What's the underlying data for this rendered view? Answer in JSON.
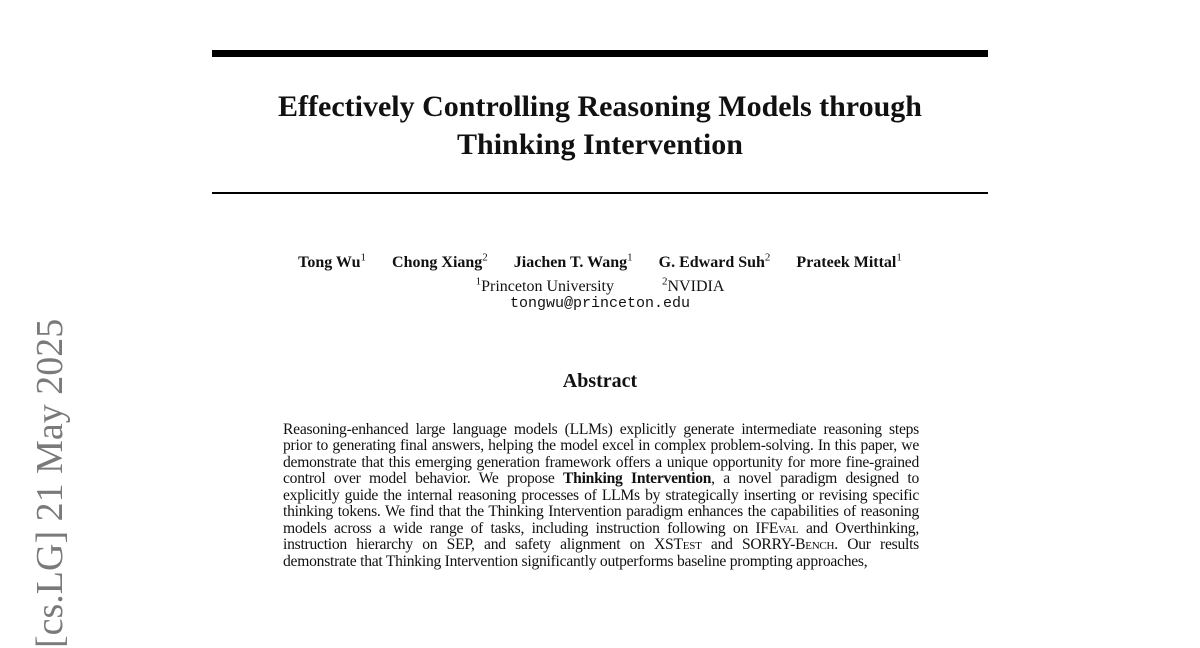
{
  "arxiv_stamp": "[cs.LG]  21 May 2025",
  "title_line1": "Effectively Controlling Reasoning Models through",
  "title_line2": "Thinking Intervention",
  "authors": [
    {
      "name": "Tong Wu",
      "aff": "1"
    },
    {
      "name": "Chong Xiang",
      "aff": "2"
    },
    {
      "name": "Jiachen T. Wang",
      "aff": "1"
    },
    {
      "name": "G. Edward Suh",
      "aff": "2"
    },
    {
      "name": "Prateek Mittal",
      "aff": "1"
    }
  ],
  "affiliations": [
    {
      "num": "1",
      "name": "Princeton University"
    },
    {
      "num": "2",
      "name": "NVIDIA"
    }
  ],
  "email": "tongwu@princeton.edu",
  "abstract_heading": "Abstract",
  "abstract": {
    "p1": "Reasoning-enhanced large language models (LLMs) explicitly generate intermediate reasoning steps prior to generating final answers, helping the model excel in complex problem-solving.  In this paper, we demonstrate that this emerging generation framework offers a unique opportunity for more fine-grained control over model behavior.  We propose ",
    "bold": "Thinking Intervention",
    "p2": ", a novel paradigm designed to explicitly guide the internal reasoning processes of LLMs by strategically inserting or revising specific thinking tokens.  We find that the Thinking Intervention paradigm enhances the capabilities of reasoning models across a wide range of tasks, including instruction following on IF",
    "sc1": "Eval",
    "p3": " and Overthinking, instruction hierarchy on SEP, and safety alignment on XST",
    "sc2": "est",
    "p4": " and SORRY-B",
    "sc3": "ench",
    "p5": ". Our results demonstrate that Thinking Intervention significantly outperforms baseline prompting approaches,"
  }
}
